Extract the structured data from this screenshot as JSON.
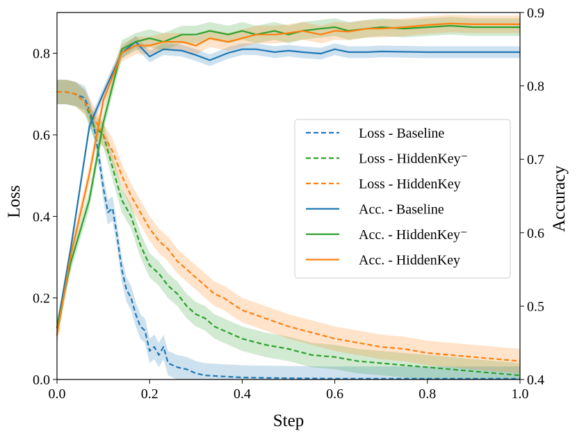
{
  "chart_data": {
    "type": "line",
    "xlabel": "Step",
    "ylabel_left": "Loss",
    "ylabel_right": "Accuracy",
    "xlim": [
      0.0,
      1.0
    ],
    "ylim_left": [
      0.0,
      0.9
    ],
    "ylim_right": [
      0.4,
      0.9
    ],
    "x_ticks": [
      "0.0",
      "0.2",
      "0.4",
      "0.6",
      "0.8",
      "1.0"
    ],
    "y_left_ticks": [
      "0.0",
      "0.2",
      "0.4",
      "0.6",
      "0.8"
    ],
    "y_right_ticks": [
      "0.4",
      "0.5",
      "0.6",
      "0.7",
      "0.8",
      "0.9"
    ],
    "legend_position": "center-right",
    "series": [
      {
        "name": "Loss - Baseline",
        "axis": "left",
        "style": "dashed",
        "color": "#1f77b4",
        "x": [
          0.0,
          0.02,
          0.04,
          0.06,
          0.07,
          0.08,
          0.09,
          0.1,
          0.11,
          0.12,
          0.13,
          0.14,
          0.15,
          0.16,
          0.17,
          0.18,
          0.19,
          0.2,
          0.21,
          0.22,
          0.23,
          0.24,
          0.26,
          0.28,
          0.3,
          0.32,
          0.35,
          0.4,
          0.45,
          0.5,
          0.6,
          0.7,
          0.8,
          0.9,
          1.0
        ],
        "y": [
          0.705,
          0.705,
          0.7,
          0.69,
          0.66,
          0.62,
          0.55,
          0.47,
          0.41,
          0.42,
          0.35,
          0.27,
          0.22,
          0.2,
          0.16,
          0.13,
          0.12,
          0.07,
          0.08,
          0.06,
          0.08,
          0.04,
          0.03,
          0.025,
          0.015,
          0.01,
          0.008,
          0.005,
          0.004,
          0.003,
          0.002,
          0.002,
          0.002,
          0.002,
          0.002
        ],
        "band": 0.03
      },
      {
        "name": "Loss - HiddenKey⁻",
        "axis": "left",
        "style": "dashed",
        "color": "#2ca02c",
        "x": [
          0.0,
          0.02,
          0.04,
          0.06,
          0.08,
          0.1,
          0.12,
          0.14,
          0.16,
          0.18,
          0.2,
          0.22,
          0.24,
          0.26,
          0.28,
          0.3,
          0.32,
          0.34,
          0.36,
          0.38,
          0.4,
          0.45,
          0.5,
          0.55,
          0.6,
          0.65,
          0.7,
          0.75,
          0.8,
          0.85,
          0.9,
          0.95,
          1.0
        ],
        "y": [
          0.705,
          0.705,
          0.7,
          0.68,
          0.62,
          0.6,
          0.52,
          0.44,
          0.4,
          0.33,
          0.28,
          0.26,
          0.23,
          0.21,
          0.18,
          0.16,
          0.15,
          0.13,
          0.12,
          0.11,
          0.1,
          0.085,
          0.075,
          0.06,
          0.055,
          0.045,
          0.04,
          0.035,
          0.03,
          0.025,
          0.02,
          0.015,
          0.01
        ],
        "band": 0.03
      },
      {
        "name": "Loss - HiddenKey",
        "axis": "left",
        "style": "dashed",
        "color": "#ff7f0e",
        "x": [
          0.0,
          0.02,
          0.04,
          0.06,
          0.08,
          0.1,
          0.12,
          0.14,
          0.16,
          0.18,
          0.2,
          0.22,
          0.24,
          0.26,
          0.28,
          0.3,
          0.32,
          0.34,
          0.36,
          0.38,
          0.4,
          0.45,
          0.5,
          0.55,
          0.6,
          0.65,
          0.7,
          0.75,
          0.8,
          0.85,
          0.9,
          0.95,
          1.0
        ],
        "y": [
          0.705,
          0.705,
          0.7,
          0.68,
          0.64,
          0.6,
          0.56,
          0.5,
          0.45,
          0.41,
          0.37,
          0.34,
          0.32,
          0.29,
          0.27,
          0.25,
          0.23,
          0.21,
          0.2,
          0.185,
          0.17,
          0.15,
          0.13,
          0.115,
          0.1,
          0.09,
          0.08,
          0.075,
          0.065,
          0.06,
          0.055,
          0.05,
          0.045
        ],
        "band": 0.03
      },
      {
        "name": "Acc. - Baseline",
        "axis": "right",
        "style": "solid",
        "color": "#1f77b4",
        "x": [
          0.0,
          0.03,
          0.07,
          0.1,
          0.14,
          0.17,
          0.2,
          0.23,
          0.27,
          0.3,
          0.33,
          0.37,
          0.4,
          0.43,
          0.47,
          0.5,
          0.53,
          0.57,
          0.6,
          0.63,
          0.67,
          0.7,
          0.8,
          0.9,
          1.0
        ],
        "y": [
          0.47,
          0.58,
          0.745,
          0.79,
          0.845,
          0.86,
          0.84,
          0.85,
          0.848,
          0.842,
          0.835,
          0.845,
          0.85,
          0.85,
          0.846,
          0.848,
          0.846,
          0.844,
          0.85,
          0.846,
          0.846,
          0.847,
          0.846,
          0.846,
          0.846
        ],
        "band": 0.008
      },
      {
        "name": "Acc. - HiddenKey⁻",
        "axis": "right",
        "style": "solid",
        "color": "#2ca02c",
        "x": [
          0.0,
          0.03,
          0.07,
          0.1,
          0.14,
          0.17,
          0.2,
          0.23,
          0.27,
          0.3,
          0.33,
          0.37,
          0.4,
          0.43,
          0.47,
          0.5,
          0.53,
          0.57,
          0.6,
          0.63,
          0.67,
          0.7,
          0.75,
          0.8,
          0.85,
          0.9,
          0.95,
          1.0
        ],
        "y": [
          0.47,
          0.56,
          0.645,
          0.75,
          0.85,
          0.86,
          0.865,
          0.86,
          0.87,
          0.87,
          0.875,
          0.87,
          0.875,
          0.87,
          0.875,
          0.87,
          0.875,
          0.878,
          0.88,
          0.875,
          0.878,
          0.88,
          0.878,
          0.88,
          0.882,
          0.88,
          0.88,
          0.88
        ],
        "band": 0.012
      },
      {
        "name": "Acc. - HiddenKey",
        "axis": "right",
        "style": "solid",
        "color": "#ff7f0e",
        "x": [
          0.0,
          0.03,
          0.07,
          0.1,
          0.14,
          0.17,
          0.2,
          0.23,
          0.27,
          0.3,
          0.33,
          0.37,
          0.4,
          0.43,
          0.47,
          0.5,
          0.53,
          0.57,
          0.6,
          0.63,
          0.67,
          0.7,
          0.75,
          0.8,
          0.85,
          0.9,
          0.95,
          1.0
        ],
        "y": [
          0.46,
          0.57,
          0.68,
          0.78,
          0.845,
          0.855,
          0.855,
          0.86,
          0.86,
          0.855,
          0.865,
          0.86,
          0.865,
          0.87,
          0.87,
          0.872,
          0.875,
          0.87,
          0.875,
          0.874,
          0.878,
          0.878,
          0.88,
          0.883,
          0.885,
          0.884,
          0.884,
          0.884
        ],
        "band": 0.012
      }
    ],
    "legend": [
      {
        "label": "Loss - Baseline",
        "style": "dashed",
        "color": "#1f77b4"
      },
      {
        "label": "Loss - HiddenKey⁻",
        "style": "dashed",
        "color": "#2ca02c"
      },
      {
        "label": "Loss - HiddenKey",
        "style": "dashed",
        "color": "#ff7f0e"
      },
      {
        "label": "Acc. - Baseline",
        "style": "solid",
        "color": "#1f77b4"
      },
      {
        "label": "Acc. - HiddenKey⁻",
        "style": "solid",
        "color": "#2ca02c"
      },
      {
        "label": "Acc. - HiddenKey",
        "style": "solid",
        "color": "#ff7f0e"
      }
    ]
  }
}
